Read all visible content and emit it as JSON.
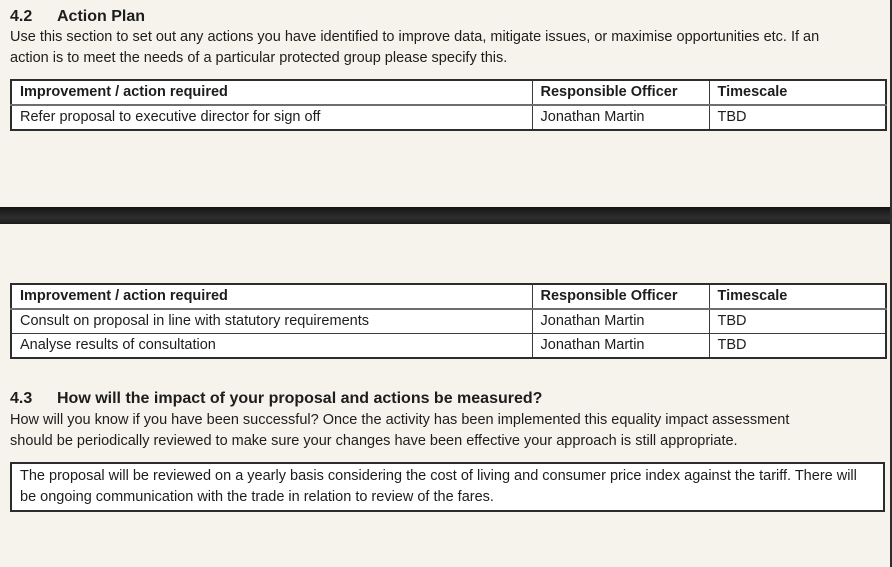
{
  "page": {
    "background_color": "#f5f3ec",
    "table_background_color": "#ffffff",
    "text_color": "#1d1d1d",
    "page_break_color": "#1f1f1f"
  },
  "section_42": {
    "number": "4.2",
    "title": "Action Plan",
    "intro": "Use this section to set out any actions you have identified to improve data, mitigate issues, or maximise opportunities etc. If an action is to meet the needs of a particular protected group please specify this."
  },
  "table1": {
    "headers": [
      "Improvement / action required",
      "Responsible Officer",
      "Timescale"
    ],
    "rows": [
      [
        "Refer proposal to executive director for sign off",
        "Jonathan Martin",
        "TBD"
      ]
    ]
  },
  "table2": {
    "headers": [
      "Improvement / action required",
      "Responsible Officer",
      "Timescale"
    ],
    "rows": [
      [
        "Consult on proposal in line with statutory requirements",
        "Jonathan Martin",
        "TBD"
      ],
      [
        "Analyse results of consultation",
        "Jonathan Martin",
        "TBD"
      ]
    ]
  },
  "section_43": {
    "number": "4.3",
    "title": "How will the impact of your proposal and actions be measured?",
    "intro": "How will you know if you have been successful? Once the activity has been implemented this equality impact assessment should be periodically reviewed to make sure your changes have been effective your approach is still appropriate.",
    "answer": "The proposal will be reviewed on a yearly basis considering the cost of living and consumer price index against the tariff. There will be ongoing communication with the trade in relation to review of the fares."
  }
}
